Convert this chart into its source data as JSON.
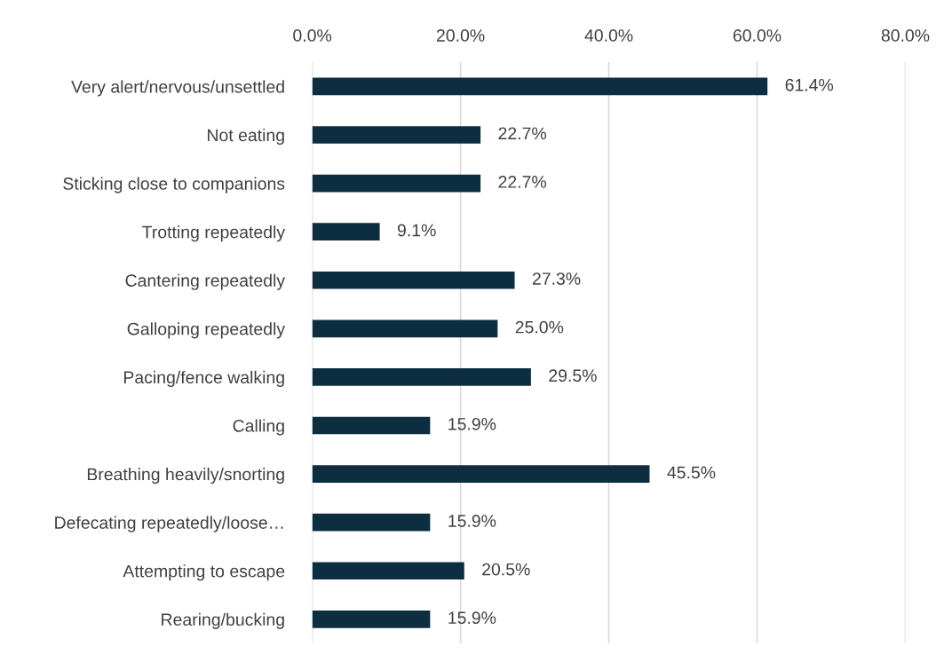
{
  "chart_data": {
    "type": "bar",
    "orientation": "horizontal",
    "categories": [
      "Very alert/nervous/unsettled",
      "Not eating",
      "Sticking close to companions",
      "Trotting repeatedly",
      "Cantering repeatedly",
      "Galloping repeatedly",
      "Pacing/fence walking",
      "Calling",
      "Breathing heavily/snorting",
      "Defecating repeatedly/loose…",
      "Attempting to escape",
      "Rearing/bucking"
    ],
    "values": [
      61.4,
      22.7,
      22.7,
      9.1,
      27.3,
      25.0,
      29.5,
      15.9,
      45.5,
      15.9,
      20.5,
      15.9
    ],
    "value_labels": [
      "61.4%",
      "22.7%",
      "22.7%",
      "9.1%",
      "27.3%",
      "25.0%",
      "29.5%",
      "15.9%",
      "45.5%",
      "15.9%",
      "20.5%",
      "15.9%"
    ],
    "color": "#0d2d40",
    "xlim": [
      0,
      80
    ],
    "xticks": [
      {
        "value": 0,
        "label": "0.0%"
      },
      {
        "value": 20,
        "label": "20.0%"
      },
      {
        "value": 40,
        "label": "40.0%"
      },
      {
        "value": 60,
        "label": "60.0%"
      },
      {
        "value": 80,
        "label": "80.0%"
      }
    ],
    "grid": "x"
  }
}
